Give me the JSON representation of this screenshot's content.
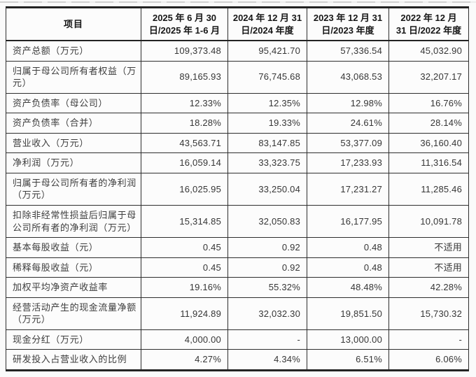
{
  "table": {
    "header": {
      "item_label": "项目",
      "periods": [
        {
          "line1": "2025 年 6 月 30",
          "line2": "日/2025 年 1-6 月"
        },
        {
          "line1": "2024 年 12 月 31",
          "line2": "日/2024 年度"
        },
        {
          "line1": "2023 年 12 月 31",
          "line2": "日/2023 年度"
        },
        {
          "line1": "2022 年 12 月",
          "line2": "31 日/2022 年度"
        }
      ]
    },
    "rows": [
      {
        "label": "资产总额（万元）",
        "values": [
          "109,373.48",
          "95,421.70",
          "57,336.54",
          "45,032.90"
        ]
      },
      {
        "label": "归属于母公司所有者权益（万元）",
        "values": [
          "89,165.93",
          "76,745.68",
          "43,068.53",
          "32,207.17"
        ]
      },
      {
        "label": "资产负债率（母公司）",
        "values": [
          "12.33%",
          "12.35%",
          "12.98%",
          "16.76%"
        ]
      },
      {
        "label": "资产负债率（合并）",
        "values": [
          "18.28%",
          "19.33%",
          "24.61%",
          "28.14%"
        ]
      },
      {
        "label": "营业收入（万元）",
        "values": [
          "43,563.71",
          "83,147.85",
          "53,377.09",
          "36,160.40"
        ]
      },
      {
        "label": "净利润（万元）",
        "values": [
          "16,059.14",
          "33,323.75",
          "17,233.93",
          "11,316.54"
        ]
      },
      {
        "label": "归属于母公司所有者的净利润（万元）",
        "values": [
          "16,025.95",
          "33,250.04",
          "17,231.27",
          "11,285.46"
        ]
      },
      {
        "label": "扣除非经常性损益后归属于母公司所有者的净利润（万元）",
        "values": [
          "15,314.85",
          "32,050.83",
          "16,177.95",
          "10,091.78"
        ]
      },
      {
        "label": "基本每股收益（元）",
        "values": [
          "0.45",
          "0.92",
          "0.48",
          "不适用"
        ]
      },
      {
        "label": "稀释每股收益（元）",
        "values": [
          "0.45",
          "0.92",
          "0.48",
          "不适用"
        ]
      },
      {
        "label": "加权平均净资产收益率",
        "values": [
          "19.16%",
          "55.32%",
          "48.48%",
          "42.28%"
        ]
      },
      {
        "label": "经营活动产生的现金流量净额（万元）",
        "values": [
          "11,924.89",
          "32,032.30",
          "19,851.50",
          "15,730.32"
        ]
      },
      {
        "label": "现金分红（万元）",
        "values": [
          "4,000.00",
          "-",
          "13,000.00",
          "-"
        ]
      },
      {
        "label": "研发投入占营业收入的比例",
        "values": [
          "4.27%",
          "4.34%",
          "6.51%",
          "6.06%"
        ]
      }
    ]
  }
}
